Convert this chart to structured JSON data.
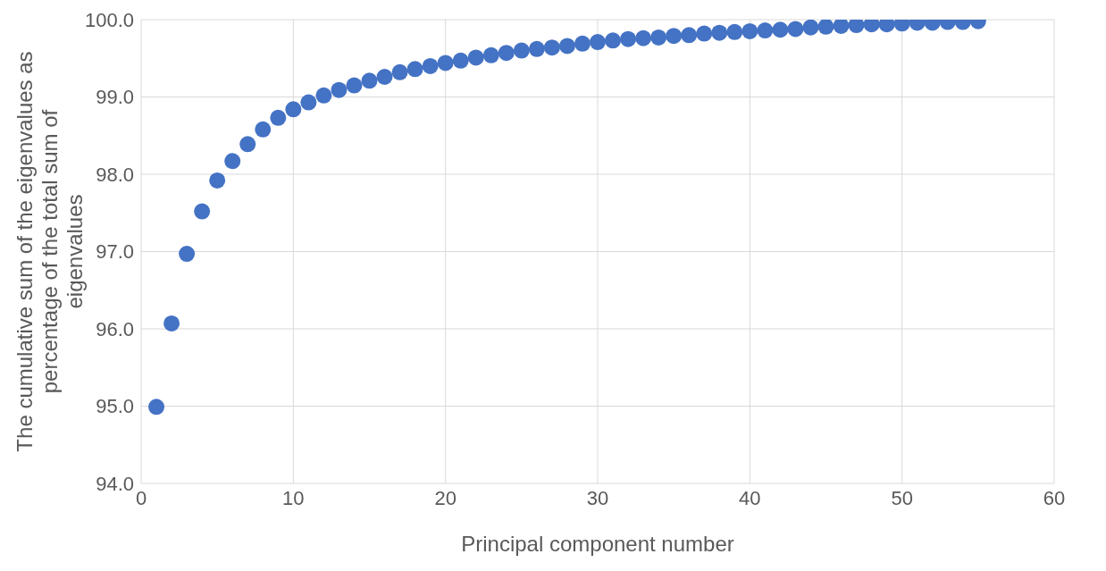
{
  "chart_data": {
    "type": "scatter",
    "xlabel": "Principal component number",
    "ylabel": "The cumulative sum of the eigenvalues as percentage of the total sum of eigenvalues",
    "x": [
      1,
      2,
      3,
      4,
      5,
      6,
      7,
      8,
      9,
      10,
      11,
      12,
      13,
      14,
      15,
      16,
      17,
      18,
      19,
      20,
      21,
      22,
      23,
      24,
      25,
      26,
      27,
      28,
      29,
      30,
      31,
      32,
      33,
      34,
      35,
      36,
      37,
      38,
      39,
      40,
      41,
      42,
      43,
      44,
      45,
      46,
      47,
      48,
      49,
      50,
      51,
      52,
      53,
      54,
      55
    ],
    "series": [
      {
        "color": "#4472c4",
        "values": [
          94.99,
          96.07,
          96.97,
          97.52,
          97.92,
          98.17,
          98.39,
          98.58,
          98.73,
          98.84,
          98.93,
          99.02,
          99.09,
          99.15,
          99.21,
          99.26,
          99.32,
          99.36,
          99.4,
          99.44,
          99.47,
          99.51,
          99.54,
          99.57,
          99.6,
          99.62,
          99.64,
          99.66,
          99.69,
          99.71,
          99.73,
          99.75,
          99.76,
          99.77,
          99.79,
          99.8,
          99.82,
          99.83,
          99.84,
          99.85,
          99.86,
          99.87,
          99.88,
          99.9,
          99.91,
          99.92,
          99.93,
          99.94,
          99.94,
          99.95,
          99.96,
          99.96,
          99.97,
          99.97,
          99.98
        ]
      }
    ],
    "xlim": [
      0,
      60
    ],
    "xticks": [
      0,
      10,
      20,
      30,
      40,
      50,
      60
    ],
    "ylim": [
      94,
      100
    ],
    "yticks": [
      {
        "value": 94,
        "label": "94.0"
      },
      {
        "value": 95,
        "label": "95.0"
      },
      {
        "value": 96,
        "label": "96.0"
      },
      {
        "value": 97,
        "label": "97.0"
      },
      {
        "value": 98,
        "label": "98.0"
      },
      {
        "value": 99,
        "label": "99.0"
      },
      {
        "value": 100,
        "label": "100.0"
      }
    ],
    "grid": true,
    "marker": "circle"
  }
}
